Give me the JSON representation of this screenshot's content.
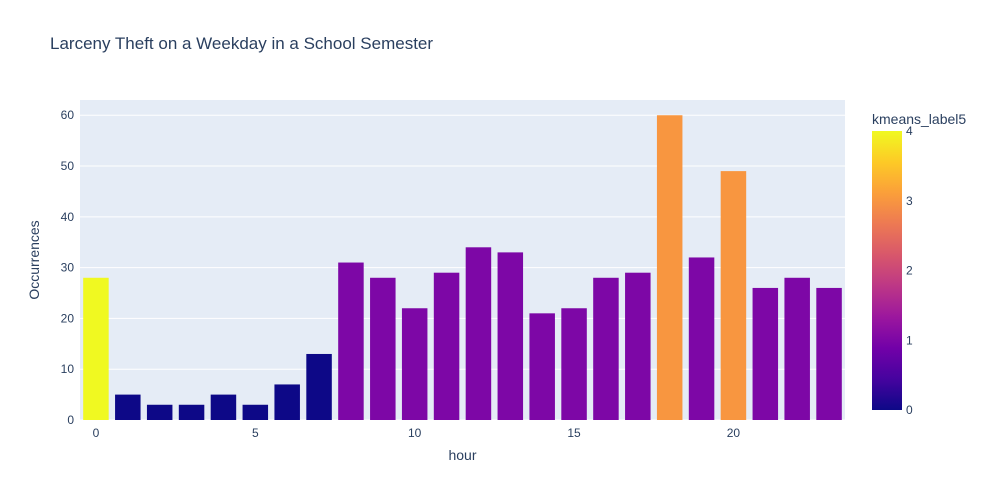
{
  "chart_data": {
    "type": "bar",
    "title": "Larceny Theft on a Weekday in a School Semester",
    "xlabel": "hour",
    "ylabel": "Occurrences",
    "x": [
      0,
      1,
      2,
      3,
      4,
      5,
      6,
      7,
      8,
      9,
      10,
      11,
      12,
      13,
      14,
      15,
      16,
      17,
      18,
      19,
      20,
      21,
      22,
      23
    ],
    "values": [
      28,
      5,
      3,
      3,
      5,
      3,
      7,
      13,
      31,
      28,
      22,
      29,
      34,
      33,
      21,
      22,
      28,
      29,
      60,
      32,
      49,
      26,
      28,
      26
    ],
    "color_values": [
      4,
      0,
      0,
      0,
      0,
      0,
      0,
      0,
      1,
      1,
      1,
      1,
      1,
      1,
      1,
      1,
      1,
      1,
      3,
      1,
      3,
      1,
      1,
      1
    ],
    "xlim": [
      -0.5,
      23.5
    ],
    "ylim": [
      0,
      63
    ],
    "x_ticks": [
      0,
      5,
      10,
      15,
      20
    ],
    "y_ticks": [
      0,
      10,
      20,
      30,
      40,
      50,
      60
    ],
    "colorbar": {
      "title": "kmeans_label5",
      "range": [
        0,
        4
      ],
      "ticks": [
        0,
        1,
        2,
        3,
        4
      ],
      "colorscale": [
        "#0d0887",
        "#46039f",
        "#7201a8",
        "#9c179e",
        "#bd3786",
        "#d8576b",
        "#ed7953",
        "#fb9f3a",
        "#fdca26",
        "#f0f921"
      ]
    },
    "grid": true,
    "colors": {
      "plot_background": "#e5ecf6",
      "grid": "#ffffff",
      "text": "#2a3f5f"
    }
  }
}
